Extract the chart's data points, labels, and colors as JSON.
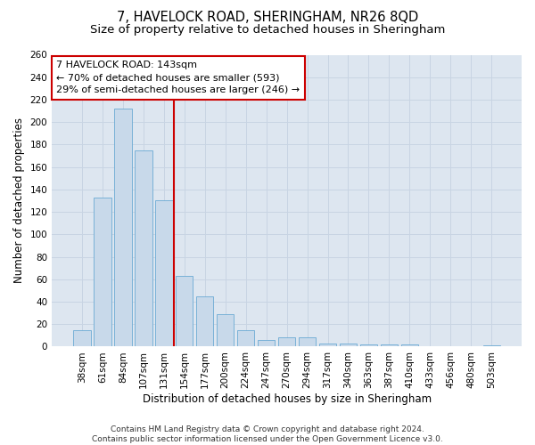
{
  "title": "7, HAVELOCK ROAD, SHERINGHAM, NR26 8QD",
  "subtitle": "Size of property relative to detached houses in Sheringham",
  "xlabel": "Distribution of detached houses by size in Sheringham",
  "ylabel": "Number of detached properties",
  "categories": [
    "38sqm",
    "61sqm",
    "84sqm",
    "107sqm",
    "131sqm",
    "154sqm",
    "177sqm",
    "200sqm",
    "224sqm",
    "247sqm",
    "270sqm",
    "294sqm",
    "317sqm",
    "340sqm",
    "363sqm",
    "387sqm",
    "410sqm",
    "433sqm",
    "456sqm",
    "480sqm",
    "503sqm"
  ],
  "values": [
    15,
    133,
    212,
    175,
    130,
    63,
    45,
    29,
    15,
    6,
    8,
    8,
    3,
    3,
    2,
    2,
    2,
    0,
    0,
    0,
    1
  ],
  "bar_color": "#c8d9ea",
  "bar_edge_color": "#6aaad4",
  "vline_x_index": 4,
  "vline_color": "#cc0000",
  "annotation_text": "7 HAVELOCK ROAD: 143sqm\n← 70% of detached houses are smaller (593)\n29% of semi-detached houses are larger (246) →",
  "annotation_box_color": "#ffffff",
  "annotation_box_edge_color": "#cc0000",
  "ylim": [
    0,
    260
  ],
  "yticks": [
    0,
    20,
    40,
    60,
    80,
    100,
    120,
    140,
    160,
    180,
    200,
    220,
    240,
    260
  ],
  "grid_color": "#c8d4e3",
  "background_color": "#dde6f0",
  "footer_text": "Contains HM Land Registry data © Crown copyright and database right 2024.\nContains public sector information licensed under the Open Government Licence v3.0.",
  "title_fontsize": 10.5,
  "subtitle_fontsize": 9.5,
  "xlabel_fontsize": 8.5,
  "ylabel_fontsize": 8.5,
  "tick_fontsize": 7.5,
  "annotation_fontsize": 8,
  "footer_fontsize": 6.5
}
